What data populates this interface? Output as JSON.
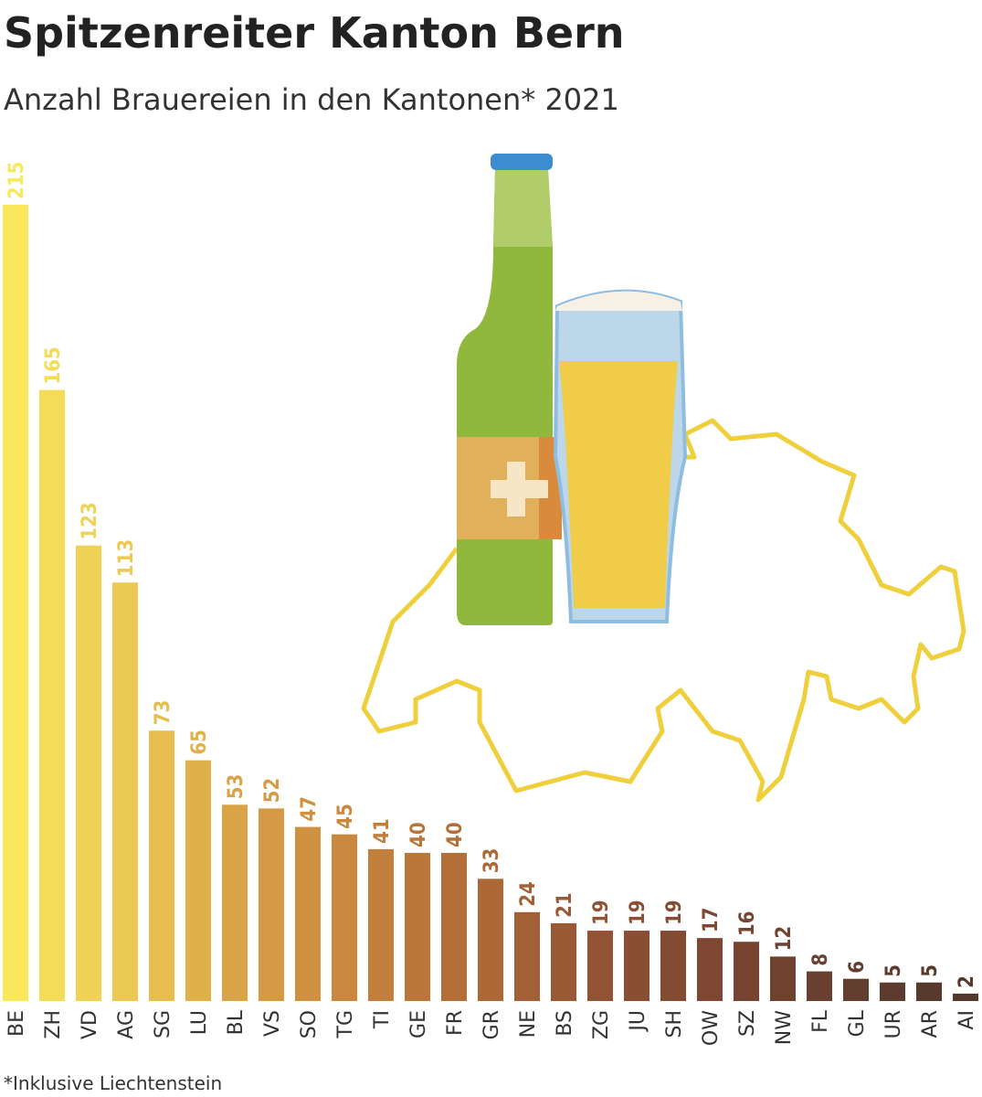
{
  "chart_data": {
    "type": "bar",
    "title": "Spitzenreiter Kanton Bern",
    "subtitle": "Anzahl Brauereien in den Kantonen* 2021",
    "footnote": "*Inklusive Liechtenstein",
    "categories": [
      "BE",
      "ZH",
      "VD",
      "AG",
      "SG",
      "LU",
      "BL",
      "VS",
      "SO",
      "TG",
      "TI",
      "GE",
      "FR",
      "GR",
      "NE",
      "BS",
      "ZG",
      "JU",
      "SH",
      "OW",
      "SZ",
      "NW",
      "FL",
      "GL",
      "UR",
      "AR",
      "AI"
    ],
    "values": [
      215,
      165,
      123,
      113,
      73,
      65,
      53,
      52,
      47,
      45,
      41,
      40,
      40,
      33,
      24,
      21,
      19,
      19,
      19,
      17,
      16,
      12,
      8,
      6,
      5,
      5,
      2
    ],
    "colors": [
      "#f9e75c",
      "#f3dc57",
      "#efd256",
      "#ebc954",
      "#e6bd4f",
      "#e0b04b",
      "#d9a347",
      "#d49a44",
      "#cf9140",
      "#c9883d",
      "#c27e3b",
      "#bb7639",
      "#b46f38",
      "#ad6837",
      "#a36036",
      "#9a5935",
      "#925334",
      "#8a4f33",
      "#834b32",
      "#7d4731",
      "#764430",
      "#6f412f",
      "#69402f",
      "#633d2e",
      "#5d3b2e",
      "#583a2d",
      "#55382d"
    ]
  }
}
